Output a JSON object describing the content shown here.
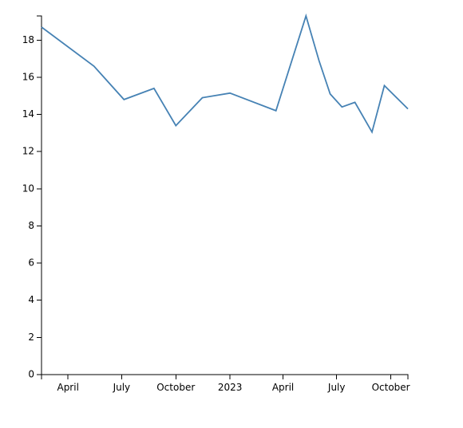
{
  "chart_data": {
    "type": "line",
    "title": "",
    "xlabel": "",
    "ylabel": "",
    "ylim": [
      0,
      19.3
    ],
    "xlim": [
      "2022-02-15",
      "2023-10-30"
    ],
    "grid": false,
    "y_ticks": [
      0,
      2,
      4,
      6,
      8,
      10,
      12,
      14,
      16,
      18
    ],
    "x_ticks": [
      {
        "date": "2022-04-01",
        "label": "April"
      },
      {
        "date": "2022-07-01",
        "label": "July"
      },
      {
        "date": "2022-10-01",
        "label": "October"
      },
      {
        "date": "2023-01-01",
        "label": "2023"
      },
      {
        "date": "2023-04-01",
        "label": "April"
      },
      {
        "date": "2023-07-01",
        "label": "July"
      },
      {
        "date": "2023-10-01",
        "label": "October"
      }
    ],
    "series": [
      {
        "color": "#4682b4",
        "x": [
          "2022-02-15",
          "2022-05-15",
          "2022-07-05",
          "2022-08-25",
          "2022-10-01",
          "2022-11-15",
          "2023-01-01",
          "2023-03-20",
          "2023-05-10",
          "2023-06-01",
          "2023-06-20",
          "2023-07-10",
          "2023-08-01",
          "2023-08-30",
          "2023-09-20",
          "2023-10-30"
        ],
        "y": [
          18.7,
          16.6,
          14.8,
          15.4,
          13.4,
          14.9,
          15.15,
          14.2,
          19.3,
          16.9,
          15.1,
          14.4,
          14.65,
          13.05,
          15.55,
          14.3
        ]
      }
    ]
  }
}
